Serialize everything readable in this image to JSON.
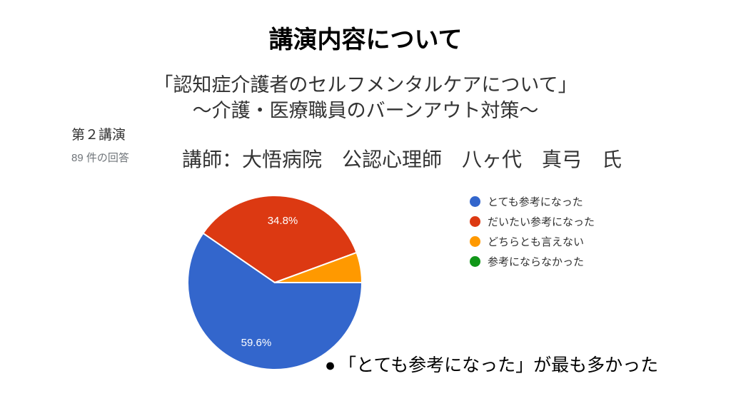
{
  "slide": {
    "title": "講演内容について",
    "subtitle_line1": "「認知症介護者のセルフメンタルケアについて」",
    "subtitle_line2": "～介護・医療職員のバーンアウト対策～",
    "session_label": "第２講演",
    "responses_label": "89 件の回答",
    "lecturer_line": "講師：大悟病院　公認心理師　八ヶ代　真弓　氏",
    "note_bullet": "●",
    "note_text": "「とても参考になった」が最も多かった"
  },
  "chart_data": {
    "type": "pie",
    "title": "",
    "categories": [
      "とても参考になった",
      "だいたい参考になった",
      "どちらとも言えない",
      "参考にならなかった"
    ],
    "values": [
      59.6,
      34.8,
      5.6,
      0
    ],
    "unit": "%",
    "colors": [
      "#3366CC",
      "#DC3912",
      "#FF9900",
      "#109618"
    ],
    "slice_labels": [
      "59.6%",
      "34.8%",
      "",
      ""
    ],
    "slice_label_color": "#ffffff",
    "legend_position": "right",
    "start_angle_deg": 0,
    "direction": "clockwise",
    "total_responses_shown": "89"
  }
}
